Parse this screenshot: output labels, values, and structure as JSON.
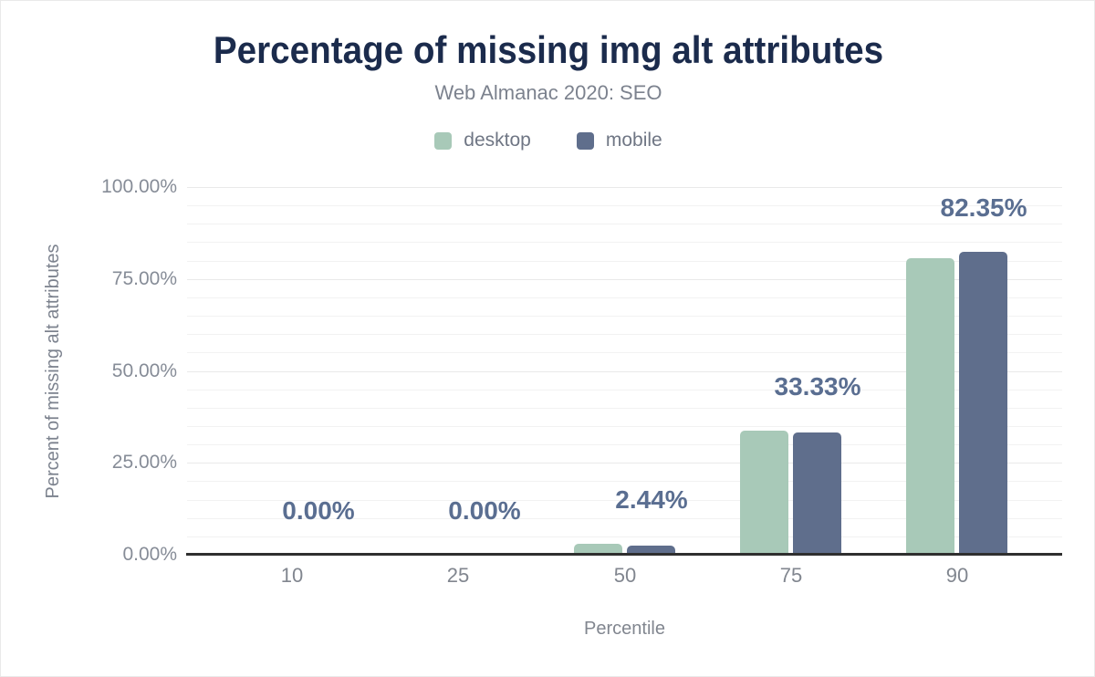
{
  "header": {
    "title": "Percentage of missing img alt attributes",
    "subtitle": "Web Almanac 2020: SEO"
  },
  "chart_data": {
    "type": "bar",
    "title": "Percentage of missing img alt attributes",
    "subtitle": "Web Almanac 2020: SEO",
    "categories": [
      "10",
      "25",
      "50",
      "75",
      "90"
    ],
    "series": [
      {
        "name": "desktop",
        "color": "#a8c9b8",
        "values": [
          0,
          0,
          3.0,
          33.8,
          80.6
        ]
      },
      {
        "name": "mobile",
        "color": "#5f6e8c",
        "values": [
          0,
          0,
          2.44,
          33.33,
          82.35
        ]
      }
    ],
    "data_labels": [
      "0.00%",
      "0.00%",
      "2.44%",
      "33.33%",
      "82.35%"
    ],
    "data_label_series": "mobile",
    "xlabel": "Percentile",
    "ylabel": "Percent of missing alt attributes",
    "y_ticks": [
      "100.00%",
      "75.00%",
      "50.00%",
      "25.00%",
      "0.00%"
    ],
    "ylim": [
      0,
      100
    ],
    "grid": "horizontal minor every 5%, major every 25%",
    "legend_position": "top-center"
  },
  "colors": {
    "title": "#1b2b4c",
    "subtitle_text": "#7c828e",
    "axis_text": "#81868f",
    "data_label_text": "#5a6e91",
    "axis_line": "#2f2f2f",
    "gridline": "#f2f2f2",
    "background": "#ffffff"
  }
}
